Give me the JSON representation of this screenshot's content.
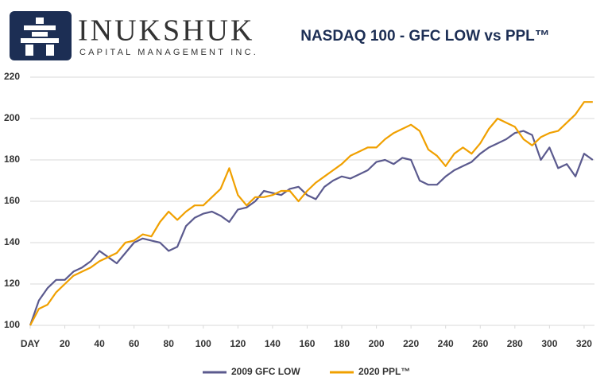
{
  "logo": {
    "name": "INUKSHUK",
    "tagline": "CAPITAL MANAGEMENT INC."
  },
  "chart_data": {
    "type": "line",
    "title": "NASDAQ 100 - GFC LOW vs PPL™",
    "x": [
      0,
      5,
      10,
      15,
      20,
      25,
      30,
      35,
      40,
      45,
      50,
      55,
      60,
      65,
      70,
      75,
      80,
      85,
      90,
      95,
      100,
      105,
      110,
      115,
      120,
      125,
      130,
      135,
      140,
      145,
      150,
      155,
      160,
      165,
      170,
      175,
      180,
      185,
      190,
      195,
      200,
      205,
      210,
      215,
      220,
      225,
      230,
      235,
      240,
      245,
      250,
      255,
      260,
      265,
      270,
      275,
      280,
      285,
      290,
      295,
      300,
      305,
      310,
      315,
      320,
      325
    ],
    "series": [
      {
        "name": "2009 GFC LOW",
        "color": "#5b5a8e",
        "values": [
          100,
          112,
          118,
          122,
          122,
          126,
          128,
          131,
          136,
          133,
          130,
          135,
          140,
          142,
          141,
          140,
          136,
          138,
          148,
          152,
          154,
          155,
          153,
          150,
          156,
          157,
          160,
          165,
          164,
          163,
          166,
          167,
          163,
          161,
          167,
          170,
          172,
          171,
          173,
          175,
          179,
          180,
          178,
          181,
          180,
          170,
          168,
          168,
          172,
          175,
          177,
          179,
          183,
          186,
          188,
          190,
          193,
          194,
          192,
          180,
          186,
          176,
          178,
          172,
          183,
          180
        ]
      },
      {
        "name": "2020 PPL™",
        "color": "#f0a000",
        "values": [
          100,
          108,
          110,
          116,
          120,
          124,
          126,
          128,
          131,
          133,
          135,
          140,
          141,
          144,
          143,
          150,
          155,
          151,
          155,
          158,
          158,
          162,
          166,
          176,
          163,
          158,
          162,
          162,
          163,
          165,
          165,
          160,
          165,
          169,
          172,
          175,
          178,
          182,
          184,
          186,
          186,
          190,
          193,
          195,
          197,
          194,
          185,
          182,
          177,
          183,
          186,
          183,
          188,
          195,
          200,
          198,
          196,
          190,
          187,
          191,
          193,
          194,
          198,
          202,
          208,
          208
        ]
      }
    ],
    "xlim": [
      0,
      326
    ],
    "xticks": [
      {
        "value": 0,
        "label": "DAY"
      },
      20,
      40,
      60,
      80,
      100,
      120,
      140,
      160,
      180,
      200,
      220,
      240,
      260,
      280,
      300,
      320
    ],
    "ylim": [
      100,
      220
    ],
    "yticks": [
      100,
      120,
      140,
      160,
      180,
      200,
      220
    ],
    "grid": true,
    "legend": "bottom"
  }
}
